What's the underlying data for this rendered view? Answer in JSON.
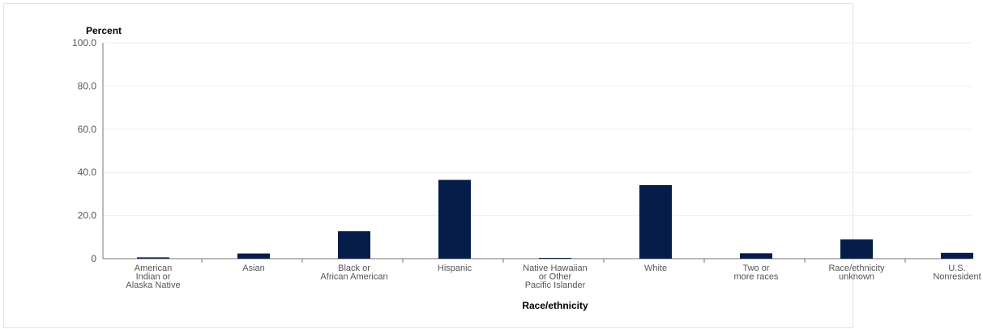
{
  "chart_data": {
    "type": "bar",
    "ylabel": "Percent",
    "xlabel": "Race/ethnicity",
    "ylim": [
      0,
      100
    ],
    "yticks": [
      "0",
      "20.0",
      "40.0",
      "60.0",
      "80.0",
      "100.0"
    ],
    "ytick_values": [
      0,
      20,
      40,
      60,
      80,
      100
    ],
    "grid": true,
    "categories": [
      [
        "American",
        "Indian or",
        "Alaska Native"
      ],
      [
        "Asian"
      ],
      [
        "Black or",
        "African American"
      ],
      [
        "Hispanic"
      ],
      [
        "Native Hawaiian",
        "or Other",
        "Pacific Islander"
      ],
      [
        "White"
      ],
      [
        "Two or",
        "more races"
      ],
      [
        "Race/ethnicity",
        "unknown"
      ],
      [
        "U.S.",
        "Nonresident"
      ]
    ],
    "values": [
      0.6,
      2.4,
      12.7,
      36.5,
      0.2,
      34.1,
      2.5,
      8.9,
      2.7
    ],
    "colors": {
      "bar": "#061c49",
      "grid": "#eeeeee",
      "axis": "#777777"
    }
  }
}
